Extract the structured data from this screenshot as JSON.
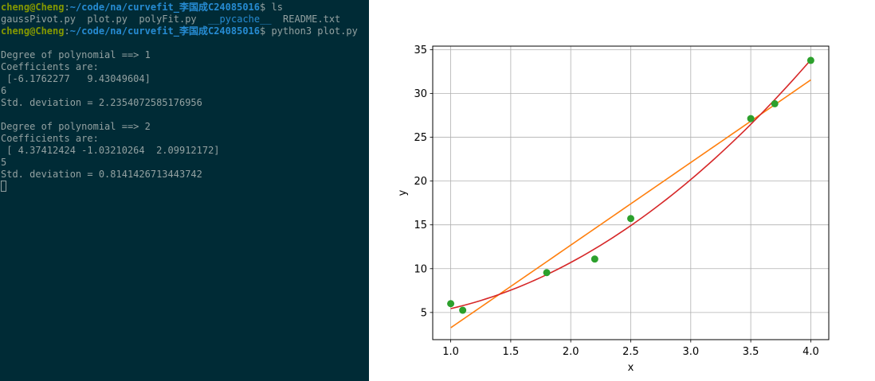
{
  "terminal": {
    "lines": [
      [
        {
          "t": "cheng@Cheng",
          "c": "user"
        },
        {
          "t": ":",
          "c": "text"
        },
        {
          "t": "~/code/na/curvefit_李国成C24085016",
          "c": "path"
        },
        {
          "t": "$ ls",
          "c": "text"
        }
      ],
      [
        {
          "t": "gaussPivot.py  plot.py  polyFit.py  ",
          "c": "text"
        },
        {
          "t": "__pycache__",
          "c": "dir"
        },
        {
          "t": "  README.txt",
          "c": "text"
        }
      ],
      [
        {
          "t": "cheng@Cheng",
          "c": "user"
        },
        {
          "t": ":",
          "c": "text"
        },
        {
          "t": "~/code/na/curvefit_李国成C24085016",
          "c": "path"
        },
        {
          "t": "$ python3 plot.py",
          "c": "text"
        }
      ],
      [
        {
          "t": "",
          "c": "text"
        }
      ],
      [
        {
          "t": "Degree of polynomial ==> 1",
          "c": "text"
        }
      ],
      [
        {
          "t": "Coefficients are:",
          "c": "text"
        }
      ],
      [
        {
          "t": " [-6.1762277   9.43049604]",
          "c": "text"
        }
      ],
      [
        {
          "t": "6",
          "c": "text"
        }
      ],
      [
        {
          "t": "Std. deviation = 2.2354072585176956",
          "c": "text"
        }
      ],
      [
        {
          "t": "",
          "c": "text"
        }
      ],
      [
        {
          "t": "Degree of polynomial ==> 2",
          "c": "text"
        }
      ],
      [
        {
          "t": "Coefficients are:",
          "c": "text"
        }
      ],
      [
        {
          "t": " [ 4.37412424 -1.03210264  2.09912172]",
          "c": "text"
        }
      ],
      [
        {
          "t": "5",
          "c": "text"
        }
      ],
      [
        {
          "t": "Std. deviation = 0.8141426713443742",
          "c": "text"
        }
      ],
      [
        {
          "t": "",
          "c": "cursor"
        }
      ]
    ],
    "colors": {
      "background": "#002b36",
      "text": "#93a1a1",
      "user": "#859900",
      "path": "#268bd2",
      "dir": "#268bd2"
    }
  },
  "chart_data": {
    "type": "scatter",
    "title": "",
    "xlabel": "x",
    "ylabel": "y",
    "xlim": [
      0.85,
      4.15
    ],
    "ylim": [
      1.9,
      35.4
    ],
    "xticks": [
      1.0,
      1.5,
      2.0,
      2.5,
      3.0,
      3.5,
      4.0
    ],
    "xtick_labels": [
      "1.0",
      "1.5",
      "2.0",
      "2.5",
      "3.0",
      "3.5",
      "4.0"
    ],
    "yticks": [
      5,
      10,
      15,
      20,
      25,
      30,
      35
    ],
    "ytick_labels": [
      "5",
      "10",
      "15",
      "20",
      "25",
      "30",
      "35"
    ],
    "grid": true,
    "legend": "none",
    "points": {
      "color": "#2ca02c",
      "x": [
        1.0,
        1.1,
        1.8,
        2.2,
        2.5,
        3.5,
        3.7,
        4.0
      ],
      "y": [
        6.008,
        5.257,
        9.549,
        11.098,
        15.722,
        27.13,
        28.828,
        33.772
      ]
    },
    "fits": [
      {
        "degree": 1,
        "color": "#ff7f0e",
        "coefficients": [
          -6.1762277,
          9.43049604
        ],
        "x_range": [
          1.0,
          4.0
        ]
      },
      {
        "degree": 2,
        "color": "#d62728",
        "coefficients": [
          4.37412424,
          -1.03210264,
          2.09912172
        ],
        "x_range": [
          1.0,
          4.0
        ]
      }
    ]
  }
}
